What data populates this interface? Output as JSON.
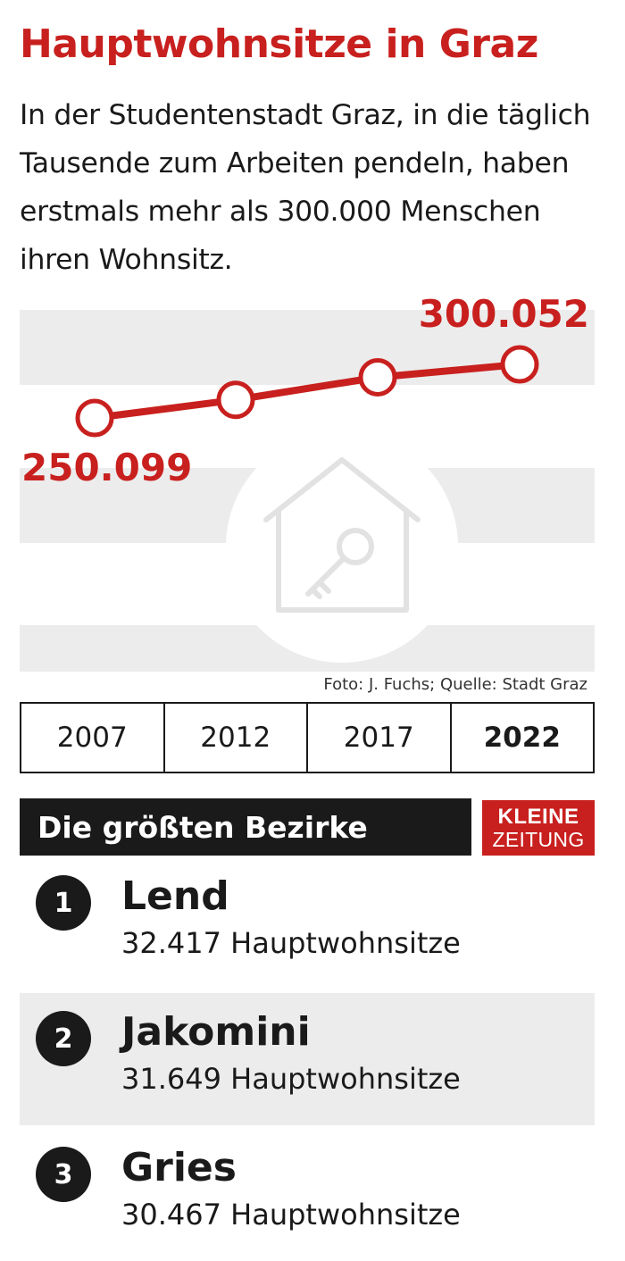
{
  "header": {
    "title": "Hauptwohnsitze in Graz",
    "intro": "In der Studentenstadt Graz, in die täglich Tausende zum Arbeiten pendeln, haben erstmals mehr als 300.000 Menschen ihren Wohnsitz."
  },
  "chart_data": {
    "type": "line",
    "x": [
      "2007",
      "2012",
      "2017",
      "2022"
    ],
    "series": [
      {
        "values": [
          250099,
          267000,
          288000,
          300052
        ]
      }
    ],
    "data_labels": [
      "250.099",
      "300.052"
    ],
    "ylim": [
      240000,
      310000
    ],
    "grid": false,
    "line_color": "#c8201e"
  },
  "source": "Foto: J. Fuchs; Quelle: Stadt Graz",
  "years": [
    {
      "label": "2007",
      "current": false
    },
    {
      "label": "2012",
      "current": false
    },
    {
      "label": "2017",
      "current": false
    },
    {
      "label": "2022",
      "current": true
    }
  ],
  "districts_header": "Die größten Bezirke",
  "logo": {
    "line1": "KLEINE",
    "line2": "ZEITUNG"
  },
  "districts": [
    {
      "rank": "1",
      "name": "Lend",
      "count": "32.417 Hauptwohnsitze"
    },
    {
      "rank": "2",
      "name": "Jakomini",
      "count": "31.649 Hauptwohnsitze"
    },
    {
      "rank": "3",
      "name": "Gries",
      "count": "30.467 Hauptwohnsitze"
    }
  ],
  "colors": {
    "accent": "#c8201e",
    "dark": "#1a1a1a",
    "band": "#ececec"
  }
}
